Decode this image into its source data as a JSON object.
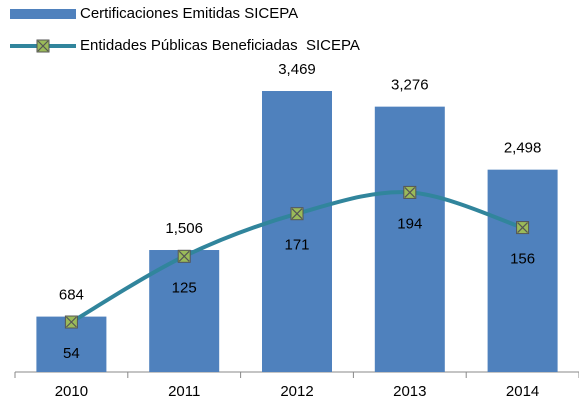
{
  "chart_data": {
    "type": "bar_line",
    "categories": [
      "2010",
      "2011",
      "2012",
      "2013",
      "2014"
    ],
    "series": [
      {
        "name": "Certificaciones Emitidas SICEPA",
        "type": "bar",
        "color": "#4f81bd",
        "values": [
          684,
          1506,
          3469,
          3276,
          2498
        ],
        "value_labels": [
          "684",
          "1,506",
          "3,469",
          "3,276",
          "2,498"
        ]
      },
      {
        "name": "Entidades Públicas Beneficiadas  SICEPA",
        "type": "line",
        "color": "#31859c",
        "marker_color": "#9bbb59",
        "axis": "y2",
        "values": [
          54,
          125,
          171,
          194,
          156
        ]
      }
    ],
    "ylim": [
      0,
      4000
    ],
    "y2lim": [
      0,
      350
    ]
  }
}
